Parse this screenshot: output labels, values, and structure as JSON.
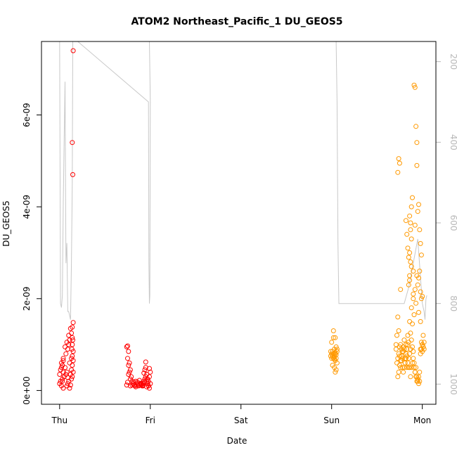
{
  "chart_data": {
    "type": "scatter",
    "title": "ATOM2 Northeast_Pacific_1 DU_GEOS5",
    "xlabel": "Date",
    "ylabel": "DU_GEOS5",
    "x_ticks": [
      {
        "day": 0,
        "label": "Thu"
      },
      {
        "day": 1,
        "label": "Fri"
      },
      {
        "day": 2,
        "label": "Sat"
      },
      {
        "day": 3,
        "label": "Sun"
      },
      {
        "day": 4,
        "label": "Mon"
      }
    ],
    "xlim": [
      -0.2,
      4.15
    ],
    "ylim": [
      -3e-10,
      7.6e-09
    ],
    "y_ticks": [
      {
        "value": 0,
        "label": "0e+00"
      },
      {
        "value": 2e-09,
        "label": "2e-09"
      },
      {
        "value": 4e-09,
        "label": "4e-09"
      },
      {
        "value": 6e-09,
        "label": "6e-09"
      }
    ],
    "right_axis": {
      "lim": [
        1050,
        150
      ],
      "color": "#b8b8b8",
      "ticks": [
        {
          "value": 200,
          "label": "200"
        },
        {
          "value": 400,
          "label": "400"
        },
        {
          "value": 600,
          "label": "600"
        },
        {
          "value": 800,
          "label": "800"
        },
        {
          "value": 1000,
          "label": "1000"
        }
      ]
    },
    "grid": false,
    "series": [
      {
        "color": "#ff0000",
        "x": [
          0.0,
          0.01,
          0.02,
          0.03,
          0.04,
          0.05,
          0.01,
          0.02,
          0.03,
          0.04,
          0.0,
          0.02,
          0.04,
          0.06,
          0.08,
          0.07,
          0.09,
          0.1,
          0.11,
          0.12,
          0.13,
          0.14,
          0.08,
          0.09,
          0.1,
          0.11,
          0.12,
          0.13,
          0.14,
          0.15,
          0.12,
          0.13,
          0.14,
          0.15,
          0.14,
          0.15,
          0.06,
          0.08,
          0.1,
          0.04,
          0.03,
          0.05,
          0.11,
          0.13,
          0.135,
          0.14,
          0.145,
          0.15,
          0.09,
          0.07,
          0.15,
          0.14,
          0.145,
          0.14,
          0.74,
          0.75,
          0.76,
          0.77,
          0.78,
          0.79,
          0.8,
          0.81,
          0.82,
          0.83,
          0.84,
          0.85,
          0.86,
          0.87,
          0.88,
          0.89,
          0.9,
          0.91,
          0.92,
          0.93,
          0.94,
          0.95,
          0.96,
          0.97,
          0.98,
          0.99,
          1.0,
          0.75,
          0.76,
          0.77,
          0.78,
          0.74,
          0.75,
          0.94,
          0.95,
          0.96,
          0.97,
          0.98,
          0.99,
          1.0,
          0.93,
          0.95,
          0.97,
          0.99,
          0.96,
          0.98,
          0.84,
          0.86,
          0.88,
          0.9,
          0.92,
          0.78,
          0.8,
          0.82,
          0.76,
          0.9,
          0.92,
          0.94
        ],
        "y": [
          1.5e-10,
          2e-10,
          1e-10,
          2.5e-10,
          5e-11,
          3e-10,
          4.5e-10,
          5e-10,
          5.5e-10,
          4e-10,
          3.5e-10,
          6e-10,
          6.5e-10,
          5e-10,
          4e-10,
          8e-10,
          9e-10,
          1e-09,
          1.1e-09,
          1.35e-09,
          1.25e-09,
          1.15e-09,
          1e-10,
          1.5e-10,
          2e-10,
          5e-11,
          1.2e-10,
          2.5e-10,
          3e-10,
          4e-10,
          3.5e-10,
          4.5e-10,
          5.5e-10,
          6.5e-10,
          7.5e-10,
          8.5e-10,
          9.5e-10,
          1.05e-09,
          1.2e-09,
          7e-10,
          2e-10,
          3e-10,
          6e-10,
          7e-10,
          9e-10,
          1e-09,
          1.1e-09,
          1.48e-09,
          2.8e-10,
          3.5e-10,
          7.4e-09,
          5.4e-09,
          4.7e-09,
          1.38e-09,
          9.5e-10,
          9.7e-10,
          8.5e-10,
          6e-10,
          4.5e-10,
          3e-10,
          2e-10,
          1.5e-10,
          1.2e-10,
          1e-10,
          8e-11,
          1.2e-10,
          1.5e-10,
          1e-10,
          1.2e-10,
          1.5e-10,
          1.2e-10,
          1e-10,
          1.5e-10,
          2e-10,
          2.5e-10,
          3e-10,
          2e-10,
          1.5e-10,
          1e-10,
          5e-11,
          1.5e-10,
          7e-10,
          5.5e-10,
          4e-10,
          2.5e-10,
          1.2e-10,
          1.8e-10,
          4.5e-10,
          5e-10,
          3.5e-10,
          2.5e-10,
          2e-10,
          3e-10,
          4e-10,
          3.8e-10,
          6.2e-10,
          2.5e-10,
          4.8e-10,
          8e-11,
          1e-10,
          2e-10,
          1.8e-10,
          2.2e-10,
          1.4e-10,
          1e-10,
          1e-10,
          1.2e-10,
          1.8e-10,
          3.5e-10,
          1.6e-10,
          1.2e-10,
          1.8e-10
        ]
      },
      {
        "color": "#ff9900",
        "x": [
          2.99,
          3.0,
          3.01,
          3.02,
          3.03,
          3.04,
          3.05,
          3.06,
          2.99,
          3.0,
          3.01,
          3.02,
          3.03,
          3.04,
          3.05,
          3.06,
          3.0,
          3.02,
          3.04,
          3.06,
          3.01,
          3.03,
          3.05,
          3.02,
          3.04,
          3.03,
          3.05,
          3.04,
          3.03,
          3.72,
          3.73,
          3.74,
          3.75,
          3.76,
          3.77,
          3.78,
          3.79,
          3.8,
          3.81,
          3.82,
          3.83,
          3.84,
          3.85,
          3.86,
          3.87,
          3.88,
          3.89,
          3.9,
          3.91,
          3.92,
          3.93,
          3.94,
          3.95,
          3.96,
          3.97,
          3.98,
          3.99,
          4.0,
          4.01,
          4.02,
          3.73,
          3.74,
          3.75,
          3.76,
          3.77,
          3.78,
          3.79,
          3.8,
          3.81,
          3.82,
          3.83,
          3.84,
          3.85,
          3.86,
          3.87,
          3.88,
          3.89,
          3.9,
          3.91,
          3.92,
          3.93,
          3.94,
          3.95,
          3.96,
          3.97,
          3.98,
          3.99,
          4.0,
          4.01,
          4.02,
          3.74,
          3.76,
          3.78,
          3.8,
          3.82,
          3.84,
          3.86,
          3.88,
          3.9,
          3.92,
          3.94,
          3.96,
          3.98,
          4.0,
          3.75,
          3.77,
          3.79,
          3.81,
          3.83,
          3.85,
          3.87,
          3.89,
          3.91,
          3.93,
          3.95,
          3.97,
          3.99,
          4.01,
          3.73,
          3.74,
          3.75,
          3.76,
          3.71,
          3.72,
          3.73,
          3.71,
          3.86,
          3.87,
          3.88,
          3.89,
          3.86,
          3.87,
          3.88,
          3.86,
          3.85,
          3.84,
          3.83,
          3.82,
          3.9,
          3.91,
          3.92,
          3.93,
          3.94,
          3.95,
          3.96,
          3.97,
          3.98,
          3.99,
          4.0,
          3.85,
          3.86,
          3.88,
          3.9,
          3.92,
          3.94,
          3.96,
          3.98,
          3.87
        ],
        "y": [
          8.5e-10,
          7e-10,
          7.5e-10,
          8e-10,
          9e-10,
          6.5e-10,
          7e-10,
          6e-10,
          7.5e-10,
          8e-10,
          8.5e-10,
          7e-10,
          7.5e-10,
          8e-10,
          9.5e-10,
          9e-10,
          1.05e-09,
          1.15e-09,
          1.15e-09,
          8.5e-10,
          5.5e-10,
          5e-10,
          4.5e-10,
          1.3e-09,
          4e-10,
          7.2e-10,
          7.8e-10,
          8.2e-10,
          6.8e-10,
          6e-10,
          7e-10,
          8e-10,
          9.5e-10,
          1e-09,
          9e-10,
          5e-10,
          4e-10,
          5e-10,
          7e-10,
          8e-10,
          9e-10,
          1e-09,
          5e-10,
          8e-10,
          9e-10,
          1.1e-09,
          9.5e-10,
          8.5e-10,
          5e-10,
          4e-10,
          3e-10,
          2e-10,
          2e-10,
          3e-10,
          4e-10,
          8e-10,
          9e-10,
          1e-09,
          9.5e-10,
          1.05e-09,
          3e-10,
          4e-10,
          5.5e-10,
          6.5e-10,
          7.5e-10,
          8.5e-10,
          9.5e-10,
          1.1e-09,
          6e-10,
          7e-10,
          5e-10,
          6e-10,
          7e-10,
          5e-10,
          3e-10,
          5e-10,
          6e-10,
          7e-10,
          6e-10,
          4e-10,
          5e-10,
          3e-10,
          2.5e-10,
          1.5e-10,
          2e-10,
          9e-10,
          1.05e-09,
          8.5e-10,
          9.5e-10,
          9e-10,
          1.3e-09,
          5e-10,
          7e-10,
          9e-10,
          1e-09,
          1.2e-09,
          1.5e-09,
          1.8e-09,
          2e-09,
          2.2e-09,
          2.5e-09,
          1.7e-09,
          1.5e-09,
          1e-09,
          7.5e-10,
          6.5e-10,
          8.5e-10,
          6e-10,
          7.5e-10,
          1.05e-09,
          1.25e-09,
          1.45e-09,
          1.65e-09,
          1.9e-09,
          2.3e-09,
          2.6e-09,
          2e-09,
          1.2e-09,
          4.75e-09,
          5.05e-09,
          4.95e-09,
          2.2e-09,
          9e-10,
          1.2e-09,
          1.6e-09,
          1e-09,
          3e-09,
          3.5e-09,
          4e-09,
          4.2e-09,
          2.5e-09,
          2.8e-09,
          3.3e-09,
          3.8e-09,
          2.9e-09,
          3.1e-09,
          3.4e-09,
          3.7e-09,
          2.6e-09,
          6.65e-09,
          6.6e-09,
          5.75e-09,
          5.4e-09,
          3.9e-09,
          4.05e-09,
          3.5e-09,
          3.2e-09,
          2.95e-09,
          2.05e-09,
          2.3e-09,
          2.4e-09,
          2.7e-09,
          2.1e-09,
          3.6e-09,
          4.9e-09,
          2.45e-09,
          2.15e-09,
          3.65e-09
        ]
      },
      {
        "type": "line",
        "axis": "right",
        "color": "#c8c8c8",
        "x": [
          -0.02,
          -0.01,
          0.0,
          0.01,
          0.02,
          0.03,
          0.04,
          0.05,
          0.06,
          0.07,
          0.08,
          0.09,
          0.1,
          0.11,
          0.12,
          0.13,
          0.14,
          0.145,
          0.15,
          0.16,
          0.17,
          0.18,
          0.19,
          0.2,
          0.98,
          0.985,
          0.99,
          0.995,
          1.0,
          0.99,
          0.98,
          0.97,
          0.96,
          0.95,
          0.94,
          0.93,
          0.92,
          0.91,
          0.9,
          0.89,
          0.88,
          0.87,
          0.86,
          0.85,
          0.84,
          0.83,
          0.82,
          0.81,
          0.8,
          0.79,
          0.78,
          0.77,
          0.76,
          0.75,
          0.74,
          0.73,
          0.72,
          -0.02,
          0.0,
          0.2,
          0.4,
          0.6,
          0.8,
          1.0,
          1.5,
          2.0,
          2.5,
          2.9,
          3.0,
          3.05,
          3.06,
          3.07,
          3.08,
          3.1,
          3.2,
          3.4,
          3.6,
          3.8,
          3.85,
          3.9,
          3.95,
          4.0,
          4.02,
          4.03,
          4.04,
          4.05
        ],
        "y": [
          150,
          150,
          150,
          800,
          810,
          780,
          550,
          400,
          250,
          700,
          650,
          820,
          820,
          830,
          840,
          700,
          500,
          150,
          150,
          150,
          150,
          150,
          150,
          150,
          300,
          700,
          800,
          780,
          300,
          150,
          150,
          150,
          150,
          150,
          150,
          150,
          150,
          150,
          150,
          150,
          150,
          150,
          150,
          150,
          150,
          150,
          150,
          150,
          150,
          150,
          150,
          150,
          150,
          150,
          150,
          150,
          150,
          150,
          150,
          150,
          150,
          150,
          150,
          150,
          150,
          150,
          150,
          150,
          150,
          150,
          300,
          650,
          800,
          800,
          800,
          800,
          800,
          800,
          760,
          700,
          640,
          800,
          820,
          840,
          790,
          780
        ]
      }
    ]
  }
}
